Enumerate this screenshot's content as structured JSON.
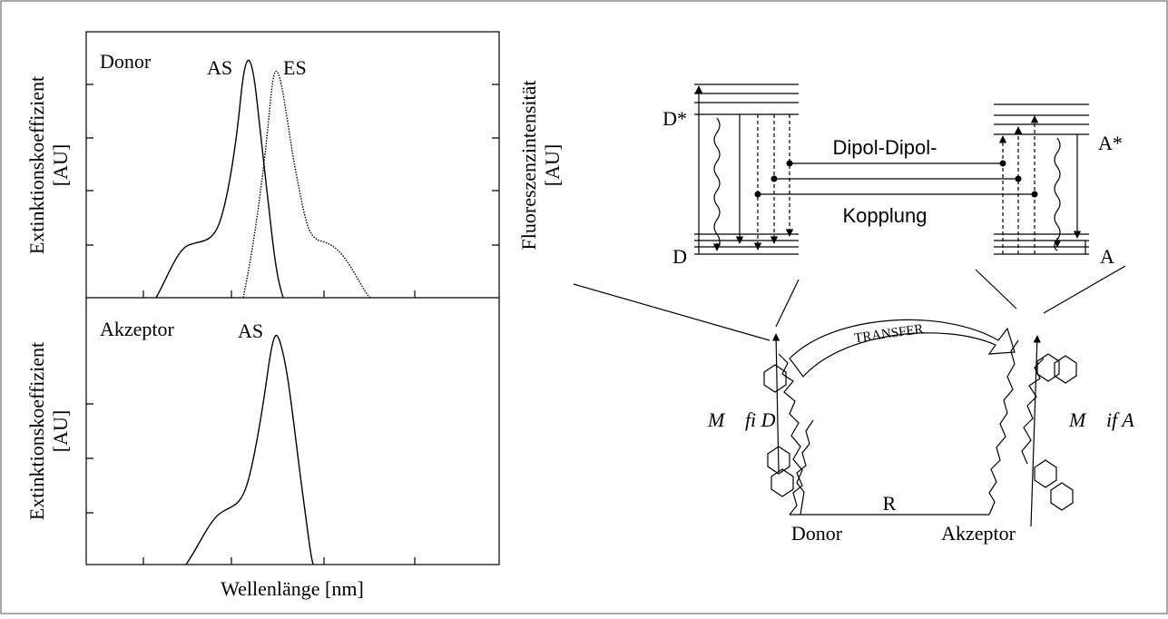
{
  "left_panel": {
    "top_plot": {
      "label": "Donor",
      "curve_labels": [
        "AS",
        "ES"
      ],
      "y_label_left": [
        "Extinktionskoeffizient",
        "[AU]"
      ],
      "y_label_right": [
        "Fluoreszenzintensität",
        "[AU]"
      ]
    },
    "bottom_plot": {
      "label": "Akzeptor",
      "curve_labels": [
        "AS"
      ],
      "y_label_left": [
        "Extinktionskoeffizient",
        "[AU]"
      ]
    },
    "x_label": "Wellenlänge [nm]"
  },
  "right_panel": {
    "levels": {
      "donor_excited": "D*",
      "acceptor_excited": "A*",
      "donor_ground": "D",
      "acceptor_ground": "A"
    },
    "coupling": [
      "Dipol-Dipol-",
      "Kopplung"
    ],
    "transfer": "TRANSFER",
    "donor_moment": "M⃗ fi D",
    "acceptor_moment": "M⃗ if A",
    "distance": "R",
    "donor": "Donor",
    "acceptor": "Akzeptor"
  }
}
